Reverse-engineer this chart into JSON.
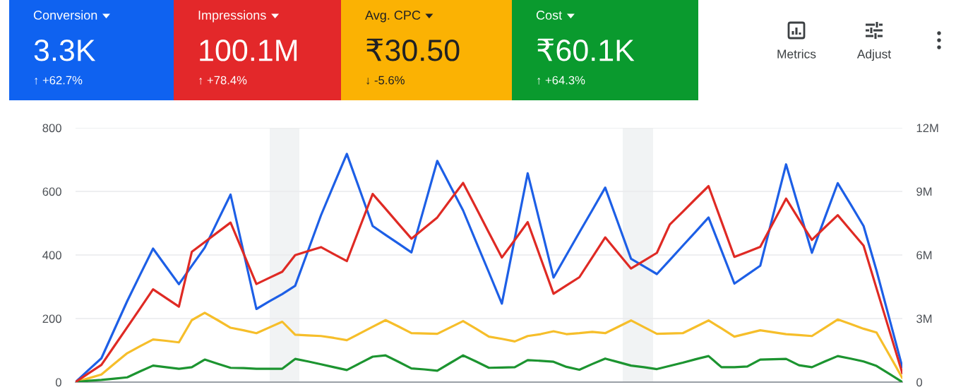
{
  "chart_data": [
    {
      "type": "line",
      "categories": [
        null,
        null,
        null,
        null,
        null,
        null,
        null,
        null,
        null,
        null,
        null,
        null,
        null,
        null,
        null,
        null,
        null,
        null,
        null,
        null,
        null,
        null,
        null,
        null,
        null,
        null,
        null,
        null,
        null,
        null,
        null,
        null,
        null,
        null,
        null,
        null,
        null,
        null,
        null,
        null,
        null,
        null,
        null,
        null,
        null,
        null,
        null,
        null,
        null,
        null,
        null,
        null,
        null,
        null,
        null,
        null,
        null,
        null,
        null,
        null,
        null,
        null,
        null,
        null,
        null
      ],
      "ylim": [
        0,
        800
      ],
      "yticks": [
        0,
        200,
        400,
        600,
        800
      ],
      "y2lim": [
        0,
        12000000
      ],
      "y2ticks": [
        0,
        {
          "value": 3000000,
          "label": "3M"
        },
        {
          "value": 6000000,
          "label": "6M"
        },
        {
          "value": 9000000,
          "label": "9M"
        },
        {
          "value": 12000000,
          "label": "12M"
        }
      ],
      "grid": "y",
      "series": [
        {
          "color": "#1d5fe6",
          "values": [
            0,
            38,
            75,
            165,
            255,
            338,
            420,
            364,
            308,
            366,
            423,
            507,
            590,
            410,
            230,
            254,
            277,
            303,
            414,
            525,
            622,
            718,
            605,
            491,
            463,
            436,
            408,
            552,
            696,
            618,
            540,
            442,
            345,
            247,
            452,
            657,
            493,
            329,
            400,
            471,
            541,
            612,
            500,
            388,
            364,
            340,
            384,
            429,
            473,
            518,
            414,
            310,
            338,
            366,
            526,
            685,
            546,
            407,
            517,
            626,
            559,
            491,
            351,
            199,
            47
          ]
        },
        {
          "color": "#df2a24",
          "axis": "y2",
          "values": [
            0,
            410000,
            810000,
            1700000,
            2590000,
            3480000,
            4380000,
            3970000,
            3560000,
            6150000,
            6610000,
            7070000,
            7530000,
            6080000,
            4630000,
            4920000,
            5210000,
            5990000,
            6180000,
            6370000,
            6040000,
            5710000,
            7300000,
            8880000,
            8180000,
            7470000,
            6770000,
            7270000,
            7770000,
            8590000,
            9400000,
            8230000,
            7050000,
            5880000,
            6710000,
            7550000,
            5860000,
            4170000,
            4560000,
            4950000,
            5890000,
            6830000,
            6090000,
            5360000,
            5730000,
            6100000,
            7440000,
            8040000,
            8650000,
            9250000,
            7580000,
            5910000,
            6140000,
            6380000,
            7520000,
            8660000,
            7680000,
            6710000,
            7300000,
            7880000,
            7160000,
            6440000,
            4430000,
            2430000,
            420000
          ]
        },
        {
          "color": "#f6be2a",
          "values": [
            0,
            12,
            24,
            58,
            91,
            113,
            134,
            130,
            125,
            195,
            218,
            195,
            171,
            163,
            154,
            172,
            190,
            149,
            147,
            145,
            139,
            132,
            153,
            174,
            195,
            175,
            154,
            153,
            152,
            172,
            192,
            168,
            143,
            136,
            128,
            145,
            151,
            160,
            151,
            154,
            158,
            154,
            174,
            194,
            173,
            152,
            153,
            154,
            174,
            194,
            169,
            143,
            153,
            163,
            157,
            151,
            148,
            145,
            171,
            197,
            183,
            168,
            156,
            85,
            13
          ]
        },
        {
          "color": "#1c9430",
          "values": [
            0,
            4,
            7,
            11,
            15,
            34,
            52,
            47,
            42,
            47,
            71,
            58,
            45,
            44,
            42,
            42,
            42,
            73,
            65,
            56,
            47,
            38,
            59,
            80,
            84,
            64,
            43,
            40,
            36,
            60,
            84,
            65,
            45,
            46,
            47,
            69,
            67,
            64,
            48,
            39,
            57,
            74,
            63,
            52,
            47,
            41,
            51,
            61,
            72,
            82,
            47,
            47,
            49,
            71,
            72,
            73,
            53,
            47,
            65,
            82,
            74,
            65,
            51,
            26,
            0
          ]
        }
      ]
    },
    {
      "type": "other",
      "categories": [
        "Conversion",
        "Impressions",
        "Avg. CPC",
        "Cost"
      ],
      "colors": [
        "#0f62f0",
        "#e3282a",
        "#fbb203",
        "#0a9a2e"
      ],
      "annotations": [
        "3.3K",
        "↑ +62.7%",
        "100.1M",
        "↑ +78.4%",
        "₹30.50",
        "↓ -5.6%",
        "₹60.1K",
        "↑ +64.3%",
        "Metrics",
        "Adjust"
      ]
    }
  ]
}
